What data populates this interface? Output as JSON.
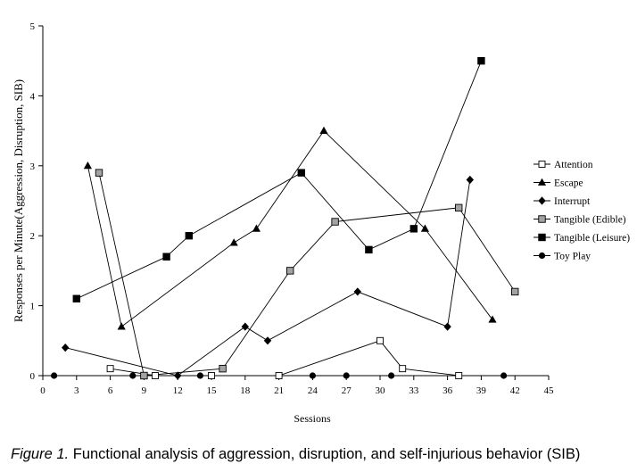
{
  "caption": {
    "label": "Figure 1.",
    "text": "Functional analysis of aggression, disruption, and self-injurious behavior (SIB)"
  },
  "chart_data": {
    "type": "line",
    "xlabel": "Sessions",
    "ylabel": "Responses per Minute(Aggression, Disruption, SIB)",
    "xlim": [
      0,
      45
    ],
    "ylim": [
      0,
      5
    ],
    "x_ticks": [
      0,
      3,
      6,
      9,
      12,
      15,
      18,
      21,
      24,
      27,
      30,
      33,
      36,
      39,
      42,
      45
    ],
    "y_ticks": [
      0,
      1,
      2,
      3,
      4,
      5
    ],
    "grid": false,
    "legend_position": "right",
    "line_color": "#000000",
    "axis_color": "#000000",
    "series": [
      {
        "name": "Attention",
        "marker_icon": "open-square-icon",
        "fill": "#ffffff",
        "x": [
          6,
          10,
          15,
          21,
          30,
          32,
          37
        ],
        "y": [
          0.1,
          0,
          0,
          0,
          0.5,
          0.1,
          0
        ]
      },
      {
        "name": "Escape",
        "marker_icon": "filled-triangle-icon",
        "fill": "#000000",
        "x": [
          4,
          7,
          17,
          19,
          25,
          34,
          40
        ],
        "y": [
          3.0,
          0.7,
          1.9,
          2.1,
          3.5,
          2.1,
          0.8
        ]
      },
      {
        "name": "Interrupt",
        "marker_icon": "filled-diamond-icon",
        "fill": "#000000",
        "x": [
          2,
          12,
          18,
          20,
          28,
          36,
          38
        ],
        "y": [
          0.4,
          0,
          0.7,
          0.5,
          1.2,
          0.7,
          2.8
        ]
      },
      {
        "name": "Tangible (Edible)",
        "marker_icon": "gray-square-icon",
        "fill": "#a3a3a3",
        "x": [
          5,
          9,
          16,
          22,
          26,
          37,
          42
        ],
        "y": [
          2.9,
          0,
          0.1,
          1.5,
          2.2,
          2.4,
          1.2
        ]
      },
      {
        "name": "Tangible (Leisure)",
        "marker_icon": "filled-square-icon",
        "fill": "#000000",
        "x": [
          3,
          11,
          13,
          23,
          29,
          33,
          39
        ],
        "y": [
          1.1,
          1.7,
          2.0,
          2.9,
          1.8,
          2.1,
          4.5
        ]
      },
      {
        "name": "Toy Play",
        "marker_icon": "filled-circle-icon",
        "fill": "#000000",
        "x": [
          1,
          8,
          14,
          24,
          27,
          31,
          41
        ],
        "y": [
          0,
          0,
          0,
          0,
          0,
          0,
          0
        ]
      }
    ]
  }
}
